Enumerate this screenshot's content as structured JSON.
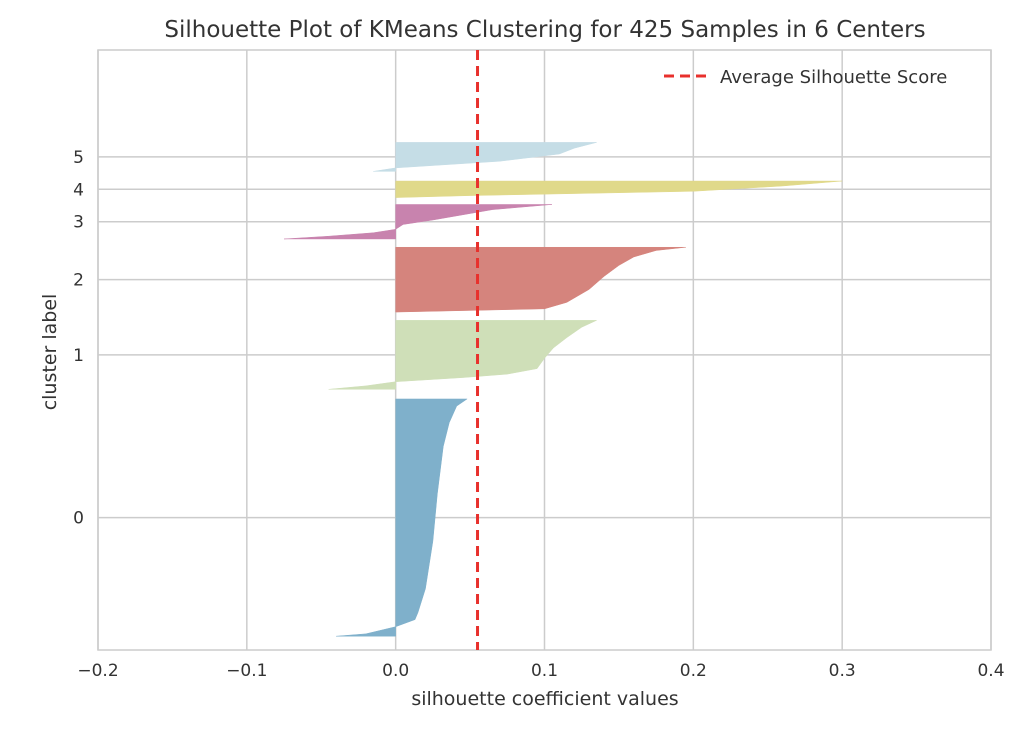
{
  "chart_data": {
    "type": "silhouette",
    "title": "Silhouette Plot of KMeans Clustering for 425 Samples in 6 Centers",
    "xlabel": "silhouette coefficient values",
    "ylabel": "cluster label",
    "xlim": [
      -0.2,
      0.4
    ],
    "ylim": [
      0,
      435
    ],
    "x_ticks": [
      "−0.2",
      "−0.1",
      "0.0",
      "0.1",
      "0.2",
      "0.3",
      "0.4"
    ],
    "x_tick_values": [
      -0.2,
      -0.1,
      0.0,
      0.1,
      0.2,
      0.3,
      0.4
    ],
    "grid": true,
    "average_silhouette_score": 0.055,
    "legend": {
      "label": "Average Silhouette Score",
      "position": "top-right",
      "color": "#e8302c"
    },
    "clusters": [
      {
        "label": "0",
        "y_start": 10,
        "y_end": 182,
        "color": "#7fb0cb",
        "values": [
          [
            0,
            -0.04
          ],
          [
            0.01,
            -0.02
          ],
          [
            0.04,
            0.0
          ],
          [
            0.07,
            0.013
          ],
          [
            0.1,
            0.015
          ],
          [
            0.2,
            0.02
          ],
          [
            0.4,
            0.025
          ],
          [
            0.6,
            0.028
          ],
          [
            0.8,
            0.032
          ],
          [
            0.9,
            0.036
          ],
          [
            0.97,
            0.041
          ],
          [
            1.0,
            0.048
          ]
        ]
      },
      {
        "label": "1",
        "y_start": 189,
        "y_end": 239,
        "color": "#cfdfb8",
        "values": [
          [
            0,
            -0.045
          ],
          [
            0.05,
            -0.02
          ],
          [
            0.11,
            0.0
          ],
          [
            0.17,
            0.045
          ],
          [
            0.22,
            0.075
          ],
          [
            0.3,
            0.095
          ],
          [
            0.45,
            0.1
          ],
          [
            0.6,
            0.106
          ],
          [
            0.75,
            0.115
          ],
          [
            0.9,
            0.125
          ],
          [
            1.0,
            0.135
          ]
        ]
      },
      {
        "label": "2",
        "y_start": 245,
        "y_end": 292,
        "color": "#d5847d",
        "values": [
          [
            0,
            0.0
          ],
          [
            0.05,
            0.1
          ],
          [
            0.15,
            0.115
          ],
          [
            0.35,
            0.13
          ],
          [
            0.55,
            0.14
          ],
          [
            0.72,
            0.15
          ],
          [
            0.85,
            0.16
          ],
          [
            0.95,
            0.175
          ],
          [
            1.0,
            0.195
          ]
        ]
      },
      {
        "label": "3",
        "y_start": 298,
        "y_end": 323,
        "color": "#c883ae",
        "values": [
          [
            0,
            -0.075
          ],
          [
            0.08,
            -0.045
          ],
          [
            0.18,
            -0.015
          ],
          [
            0.28,
            0.0
          ],
          [
            0.42,
            0.005
          ],
          [
            0.55,
            0.025
          ],
          [
            0.7,
            0.045
          ],
          [
            0.85,
            0.065
          ],
          [
            1.0,
            0.105
          ]
        ]
      },
      {
        "label": "4",
        "y_start": 328,
        "y_end": 340,
        "color": "#e0d98a",
        "values": [
          [
            0,
            0.0
          ],
          [
            0.12,
            0.05
          ],
          [
            0.38,
            0.2
          ],
          [
            0.7,
            0.26
          ],
          [
            1.0,
            0.3
          ]
        ]
      },
      {
        "label": "5",
        "y_start": 347,
        "y_end": 368,
        "color": "#c5dde6",
        "values": [
          [
            0,
            -0.015
          ],
          [
            0.12,
            0.0
          ],
          [
            0.35,
            0.07
          ],
          [
            0.6,
            0.11
          ],
          [
            0.8,
            0.12
          ],
          [
            1.0,
            0.135
          ]
        ]
      }
    ]
  }
}
